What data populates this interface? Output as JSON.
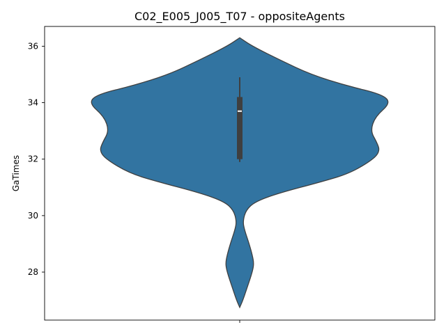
{
  "chart_data": {
    "type": "violin",
    "title": "C02_E005_J005_T07 - oppositeAgents",
    "xlabel": "",
    "ylabel": "GaTimes",
    "ylim": [
      26.3,
      36.7
    ],
    "yticks": [
      "28",
      "30",
      "32",
      "34",
      "36"
    ],
    "grid": false,
    "colors": {
      "violin_fill": "#3274a1",
      "outline": "#3f3f3f",
      "box": "#3f3f3f",
      "median": "#ffffff"
    },
    "violin": {
      "profile": [
        {
          "y": 26.75,
          "halfwidth": 0.0
        },
        {
          "y": 27.0,
          "halfwidth": 0.02
        },
        {
          "y": 27.5,
          "halfwidth": 0.05
        },
        {
          "y": 28.0,
          "halfwidth": 0.08
        },
        {
          "y": 28.3,
          "halfwidth": 0.09
        },
        {
          "y": 28.6,
          "halfwidth": 0.08
        },
        {
          "y": 29.0,
          "halfwidth": 0.06
        },
        {
          "y": 29.5,
          "halfwidth": 0.03
        },
        {
          "y": 29.8,
          "halfwidth": 0.02
        },
        {
          "y": 30.2,
          "halfwidth": 0.04
        },
        {
          "y": 30.5,
          "halfwidth": 0.1
        },
        {
          "y": 30.8,
          "halfwidth": 0.25
        },
        {
          "y": 31.2,
          "halfwidth": 0.52
        },
        {
          "y": 31.5,
          "halfwidth": 0.7
        },
        {
          "y": 32.0,
          "halfwidth": 0.85
        },
        {
          "y": 32.3,
          "halfwidth": 0.89
        },
        {
          "y": 32.6,
          "halfwidth": 0.87
        },
        {
          "y": 33.0,
          "halfwidth": 0.83
        },
        {
          "y": 33.5,
          "halfwidth": 0.86
        },
        {
          "y": 34.0,
          "halfwidth": 0.96
        },
        {
          "y": 34.3,
          "halfwidth": 0.9
        },
        {
          "y": 34.6,
          "halfwidth": 0.68
        },
        {
          "y": 35.0,
          "halfwidth": 0.45
        },
        {
          "y": 35.5,
          "halfwidth": 0.26
        },
        {
          "y": 36.0,
          "halfwidth": 0.08
        },
        {
          "y": 36.3,
          "halfwidth": 0.0
        }
      ],
      "box": {
        "q1": 32.0,
        "median": 33.7,
        "q3": 34.2
      },
      "whiskers": {
        "low": 31.9,
        "high": 34.9
      }
    }
  }
}
